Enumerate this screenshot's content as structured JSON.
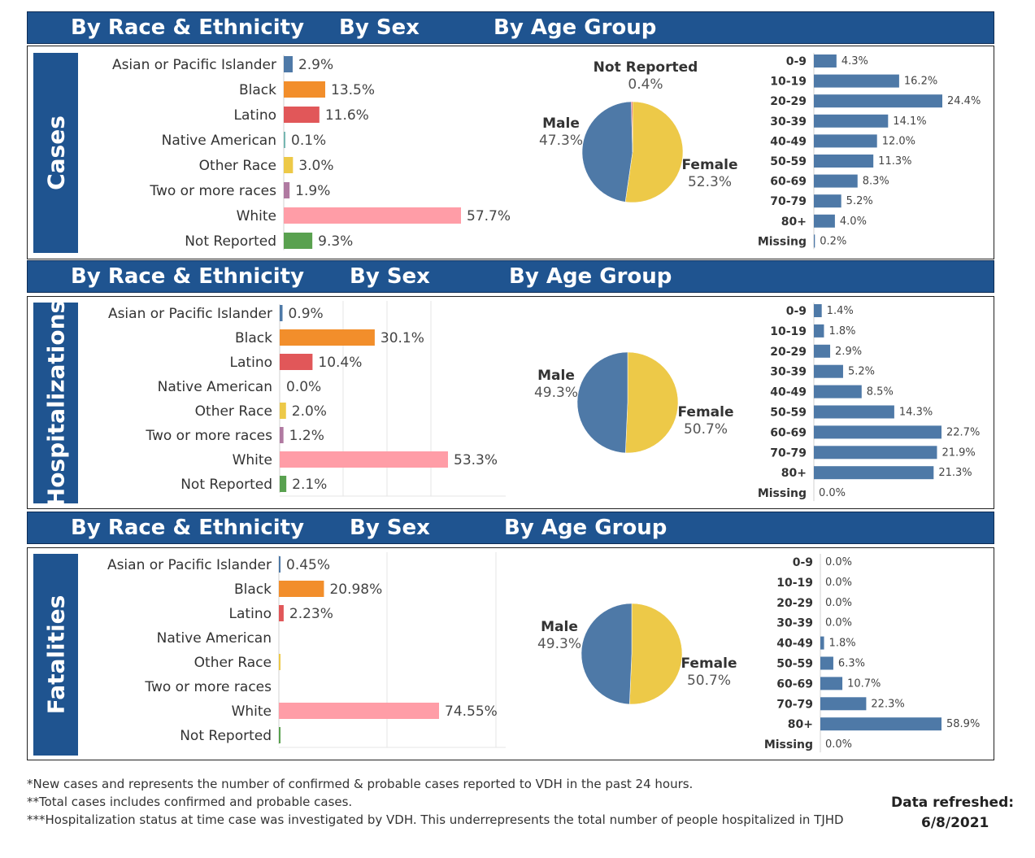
{
  "headers": [
    {
      "race": "By Race & Ethnicity",
      "sex": "By Sex",
      "age": "By Age Group"
    },
    {
      "race": "By Race & Ethnicity",
      "sex": "By Sex",
      "age": "By Age Group"
    },
    {
      "race": "By Race & Ethnicity",
      "sex": "By Sex",
      "age": "By Age Group"
    }
  ],
  "section_labels": [
    "Cases",
    "Hospitalizations",
    "Fatalities"
  ],
  "colors": {
    "header_band": "#1f5490",
    "Asian or Pacific Islander": "#4e79a7",
    "Black": "#f28e2b",
    "Latino": "#e15759",
    "Native American": "#76b7b2",
    "Other Race": "#edc948",
    "Two or more races": "#b07aa1",
    "White": "#ff9da7",
    "Not Reported": "#59a14f",
    "Male": "#4e79a7",
    "Female": "#edc948",
    "Sex Not Reported": "#e15759",
    "age_bar": "#4e79a7"
  },
  "chart_data": [
    {
      "type": "bar",
      "section": "Cases",
      "title": "By Race & Ethnicity",
      "categories": [
        "Asian or Pacific Islander",
        "Black",
        "Latino",
        "Native American",
        "Other Race",
        "Two or more races",
        "White",
        "Not Reported"
      ],
      "values": [
        2.9,
        13.5,
        11.6,
        0.1,
        3.0,
        1.9,
        57.7,
        9.3
      ],
      "labels": [
        "2.9%",
        "13.5%",
        "11.6%",
        "0.1%",
        "3.0%",
        "1.9%",
        "57.7%",
        "9.3%"
      ]
    },
    {
      "type": "pie",
      "section": "Cases",
      "title": "By Sex",
      "slices": [
        {
          "name": "Female",
          "value": 52.3,
          "label": "52.3%"
        },
        {
          "name": "Male",
          "value": 47.3,
          "label": "47.3%"
        },
        {
          "name": "Not Reported",
          "value": 0.4,
          "label": "0.4%"
        }
      ]
    },
    {
      "type": "bar",
      "section": "Cases",
      "title": "By Age Group",
      "categories": [
        "0-9",
        "10-19",
        "20-29",
        "30-39",
        "40-49",
        "50-59",
        "60-69",
        "70-79",
        "80+",
        "Missing"
      ],
      "values": [
        4.3,
        16.2,
        24.4,
        14.1,
        12.0,
        11.3,
        8.3,
        5.2,
        4.0,
        0.2
      ],
      "labels": [
        "4.3%",
        "16.2%",
        "24.4%",
        "14.1%",
        "12.0%",
        "11.3%",
        "8.3%",
        "5.2%",
        "4.0%",
        "0.2%"
      ]
    },
    {
      "type": "bar",
      "section": "Hospitalizations",
      "title": "By Race & Ethnicity",
      "categories": [
        "Asian or Pacific Islander",
        "Black",
        "Latino",
        "Native American",
        "Other Race",
        "Two or more races",
        "White",
        "Not Reported"
      ],
      "values": [
        0.9,
        30.1,
        10.4,
        0.0,
        2.0,
        1.2,
        53.3,
        2.1
      ],
      "labels": [
        "0.9%",
        "30.1%",
        "10.4%",
        "0.0%",
        "2.0%",
        "1.2%",
        "53.3%",
        "2.1%"
      ]
    },
    {
      "type": "pie",
      "section": "Hospitalizations",
      "title": "By Sex",
      "slices": [
        {
          "name": "Female",
          "value": 50.7,
          "label": "50.7%"
        },
        {
          "name": "Male",
          "value": 49.3,
          "label": "49.3%"
        }
      ]
    },
    {
      "type": "bar",
      "section": "Hospitalizations",
      "title": "By Age Group",
      "categories": [
        "0-9",
        "10-19",
        "20-29",
        "30-39",
        "40-49",
        "50-59",
        "60-69",
        "70-79",
        "80+",
        "Missing"
      ],
      "values": [
        1.4,
        1.8,
        2.9,
        5.2,
        8.5,
        14.3,
        22.7,
        21.9,
        21.3,
        0.0
      ],
      "labels": [
        "1.4%",
        "1.8%",
        "2.9%",
        "5.2%",
        "8.5%",
        "14.3%",
        "22.7%",
        "21.9%",
        "21.3%",
        "0.0%"
      ]
    },
    {
      "type": "bar",
      "section": "Fatalities",
      "title": "By Race & Ethnicity",
      "categories": [
        "Asian or Pacific Islander",
        "Black",
        "Latino",
        "Native American",
        "Other Race",
        "Two or more races",
        "White",
        "Not Reported"
      ],
      "values": [
        0.45,
        20.98,
        2.23,
        0,
        0.3,
        0,
        74.55,
        0.4
      ],
      "labels": [
        "0.45%",
        "20.98%",
        "2.23%",
        "",
        "",
        "",
        "74.55%",
        ""
      ]
    },
    {
      "type": "pie",
      "section": "Fatalities",
      "title": "By Sex",
      "slices": [
        {
          "name": "Female",
          "value": 50.7,
          "label": "50.7%"
        },
        {
          "name": "Male",
          "value": 49.3,
          "label": "49.3%"
        }
      ]
    },
    {
      "type": "bar",
      "section": "Fatalities",
      "title": "By Age Group",
      "categories": [
        "0-9",
        "10-19",
        "20-29",
        "30-39",
        "40-49",
        "50-59",
        "60-69",
        "70-79",
        "80+",
        "Missing"
      ],
      "values": [
        0.0,
        0.0,
        0.0,
        0.0,
        1.8,
        6.3,
        10.7,
        22.3,
        58.9,
        0.0
      ],
      "labels": [
        "0.0%",
        "0.0%",
        "0.0%",
        "0.0%",
        "1.8%",
        "6.3%",
        "10.7%",
        "22.3%",
        "58.9%",
        "0.0%"
      ]
    }
  ],
  "footnotes": [
    "*New cases and represents the number of confirmed & probable cases reported to VDH in the past 24 hours.",
    "**Total cases includes confirmed and probable cases.",
    "***Hospitalization status at time case was investigated by VDH. This underrepresents the total number of people hospitalized in TJHD"
  ],
  "refresh": {
    "label": "Data refreshed:",
    "date": "6/8/2021"
  }
}
